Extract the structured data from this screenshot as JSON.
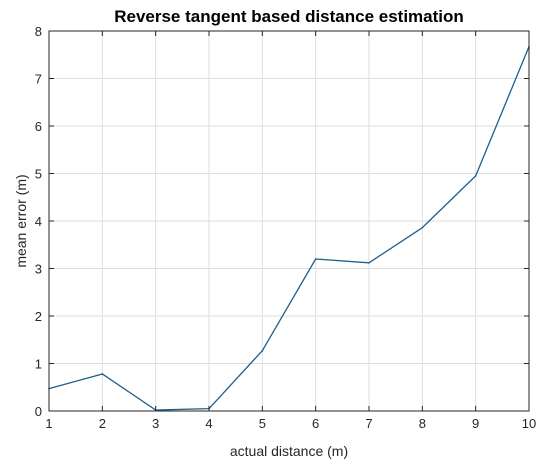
{
  "chart_data": {
    "type": "line",
    "title": "Reverse tangent based distance estimation",
    "xlabel": "actual distance (m)",
    "ylabel": "mean error (m)",
    "xlim": [
      1,
      10
    ],
    "ylim": [
      0,
      8
    ],
    "xticks": [
      1,
      2,
      3,
      4,
      5,
      6,
      7,
      8,
      9,
      10
    ],
    "yticks": [
      0,
      1,
      2,
      3,
      4,
      5,
      6,
      7,
      8
    ],
    "grid": true,
    "series": [
      {
        "color": "#1f5f8b",
        "x": [
          1,
          2,
          3,
          4,
          5,
          6,
          7,
          8,
          9,
          10
        ],
        "y": [
          0.47,
          0.78,
          0.02,
          0.05,
          1.27,
          3.2,
          3.12,
          3.86,
          4.95,
          7.67
        ]
      }
    ]
  }
}
